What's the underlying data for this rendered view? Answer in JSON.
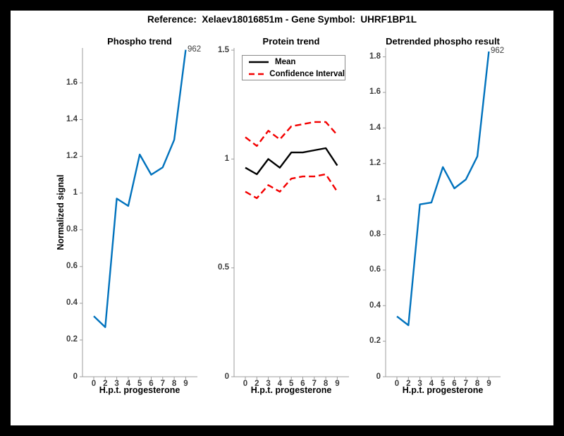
{
  "figure": {
    "title": "Reference:  Xelaev18016851m - Gene Symbol:  UHRF1BP1L",
    "background": "#000000",
    "canvas_color": "#ffffff"
  },
  "colors": {
    "blue": "#0072BD",
    "red": "#F30000",
    "black": "#000000",
    "axis": "#9c9c9c"
  },
  "chart_data": [
    {
      "type": "line",
      "title": "Phospho trend",
      "xlabel": "H.p.t. progesterone",
      "ylabel": "Normalized signal",
      "xticklabels": [
        "0",
        "2",
        "3",
        "4",
        "5",
        "6",
        "7",
        "8",
        "9"
      ],
      "yticks": [
        0,
        0.2,
        0.4,
        0.6,
        0.8,
        1,
        1.2,
        1.4,
        1.6
      ],
      "ylim": [
        0,
        1.79
      ],
      "grid": false,
      "annotation": "962",
      "series": [
        {
          "name": "phospho-line",
          "color": "blue",
          "style": "solid",
          "values": [
            0.33,
            0.27,
            0.97,
            0.93,
            1.21,
            1.1,
            1.14,
            1.29,
            1.78
          ]
        }
      ]
    },
    {
      "type": "line",
      "title": "Protein trend",
      "xlabel": "H.p.t. progesterone",
      "ylabel": "",
      "xticklabels": [
        "0",
        "2",
        "3",
        "4",
        "5",
        "6",
        "7",
        "8",
        "9"
      ],
      "yticks": [
        0,
        0.5,
        1,
        1.5
      ],
      "ylim": [
        0,
        1.51
      ],
      "grid": false,
      "legend": [
        "Mean",
        "Confidence Interval"
      ],
      "legend_position": "northwest",
      "series": [
        {
          "name": "mean-line",
          "color": "black",
          "style": "solid",
          "values": [
            0.96,
            0.93,
            1.0,
            0.96,
            1.03,
            1.03,
            1.04,
            1.05,
            0.97
          ]
        },
        {
          "name": "ci-upper-line",
          "color": "red",
          "style": "dashed",
          "values": [
            1.1,
            1.06,
            1.13,
            1.09,
            1.15,
            1.16,
            1.17,
            1.17,
            1.11
          ]
        },
        {
          "name": "ci-lower-line",
          "color": "red",
          "style": "dashed",
          "values": [
            0.85,
            0.82,
            0.88,
            0.85,
            0.91,
            0.92,
            0.92,
            0.93,
            0.85
          ]
        }
      ]
    },
    {
      "type": "line",
      "title": "Detrended phospho result",
      "xlabel": "H.p.t. progesterone",
      "ylabel": "",
      "xticklabels": [
        "0",
        "2",
        "3",
        "4",
        "5",
        "6",
        "7",
        "8",
        "9"
      ],
      "yticks": [
        0,
        0.2,
        0.4,
        0.6,
        0.8,
        1,
        1.2,
        1.4,
        1.6,
        1.8
      ],
      "ylim": [
        0,
        1.85
      ],
      "grid": false,
      "annotation": "962",
      "series": [
        {
          "name": "detrended-line",
          "color": "blue",
          "style": "solid",
          "values": [
            0.34,
            0.29,
            0.97,
            0.98,
            1.18,
            1.06,
            1.11,
            1.24,
            1.83
          ]
        }
      ]
    }
  ]
}
